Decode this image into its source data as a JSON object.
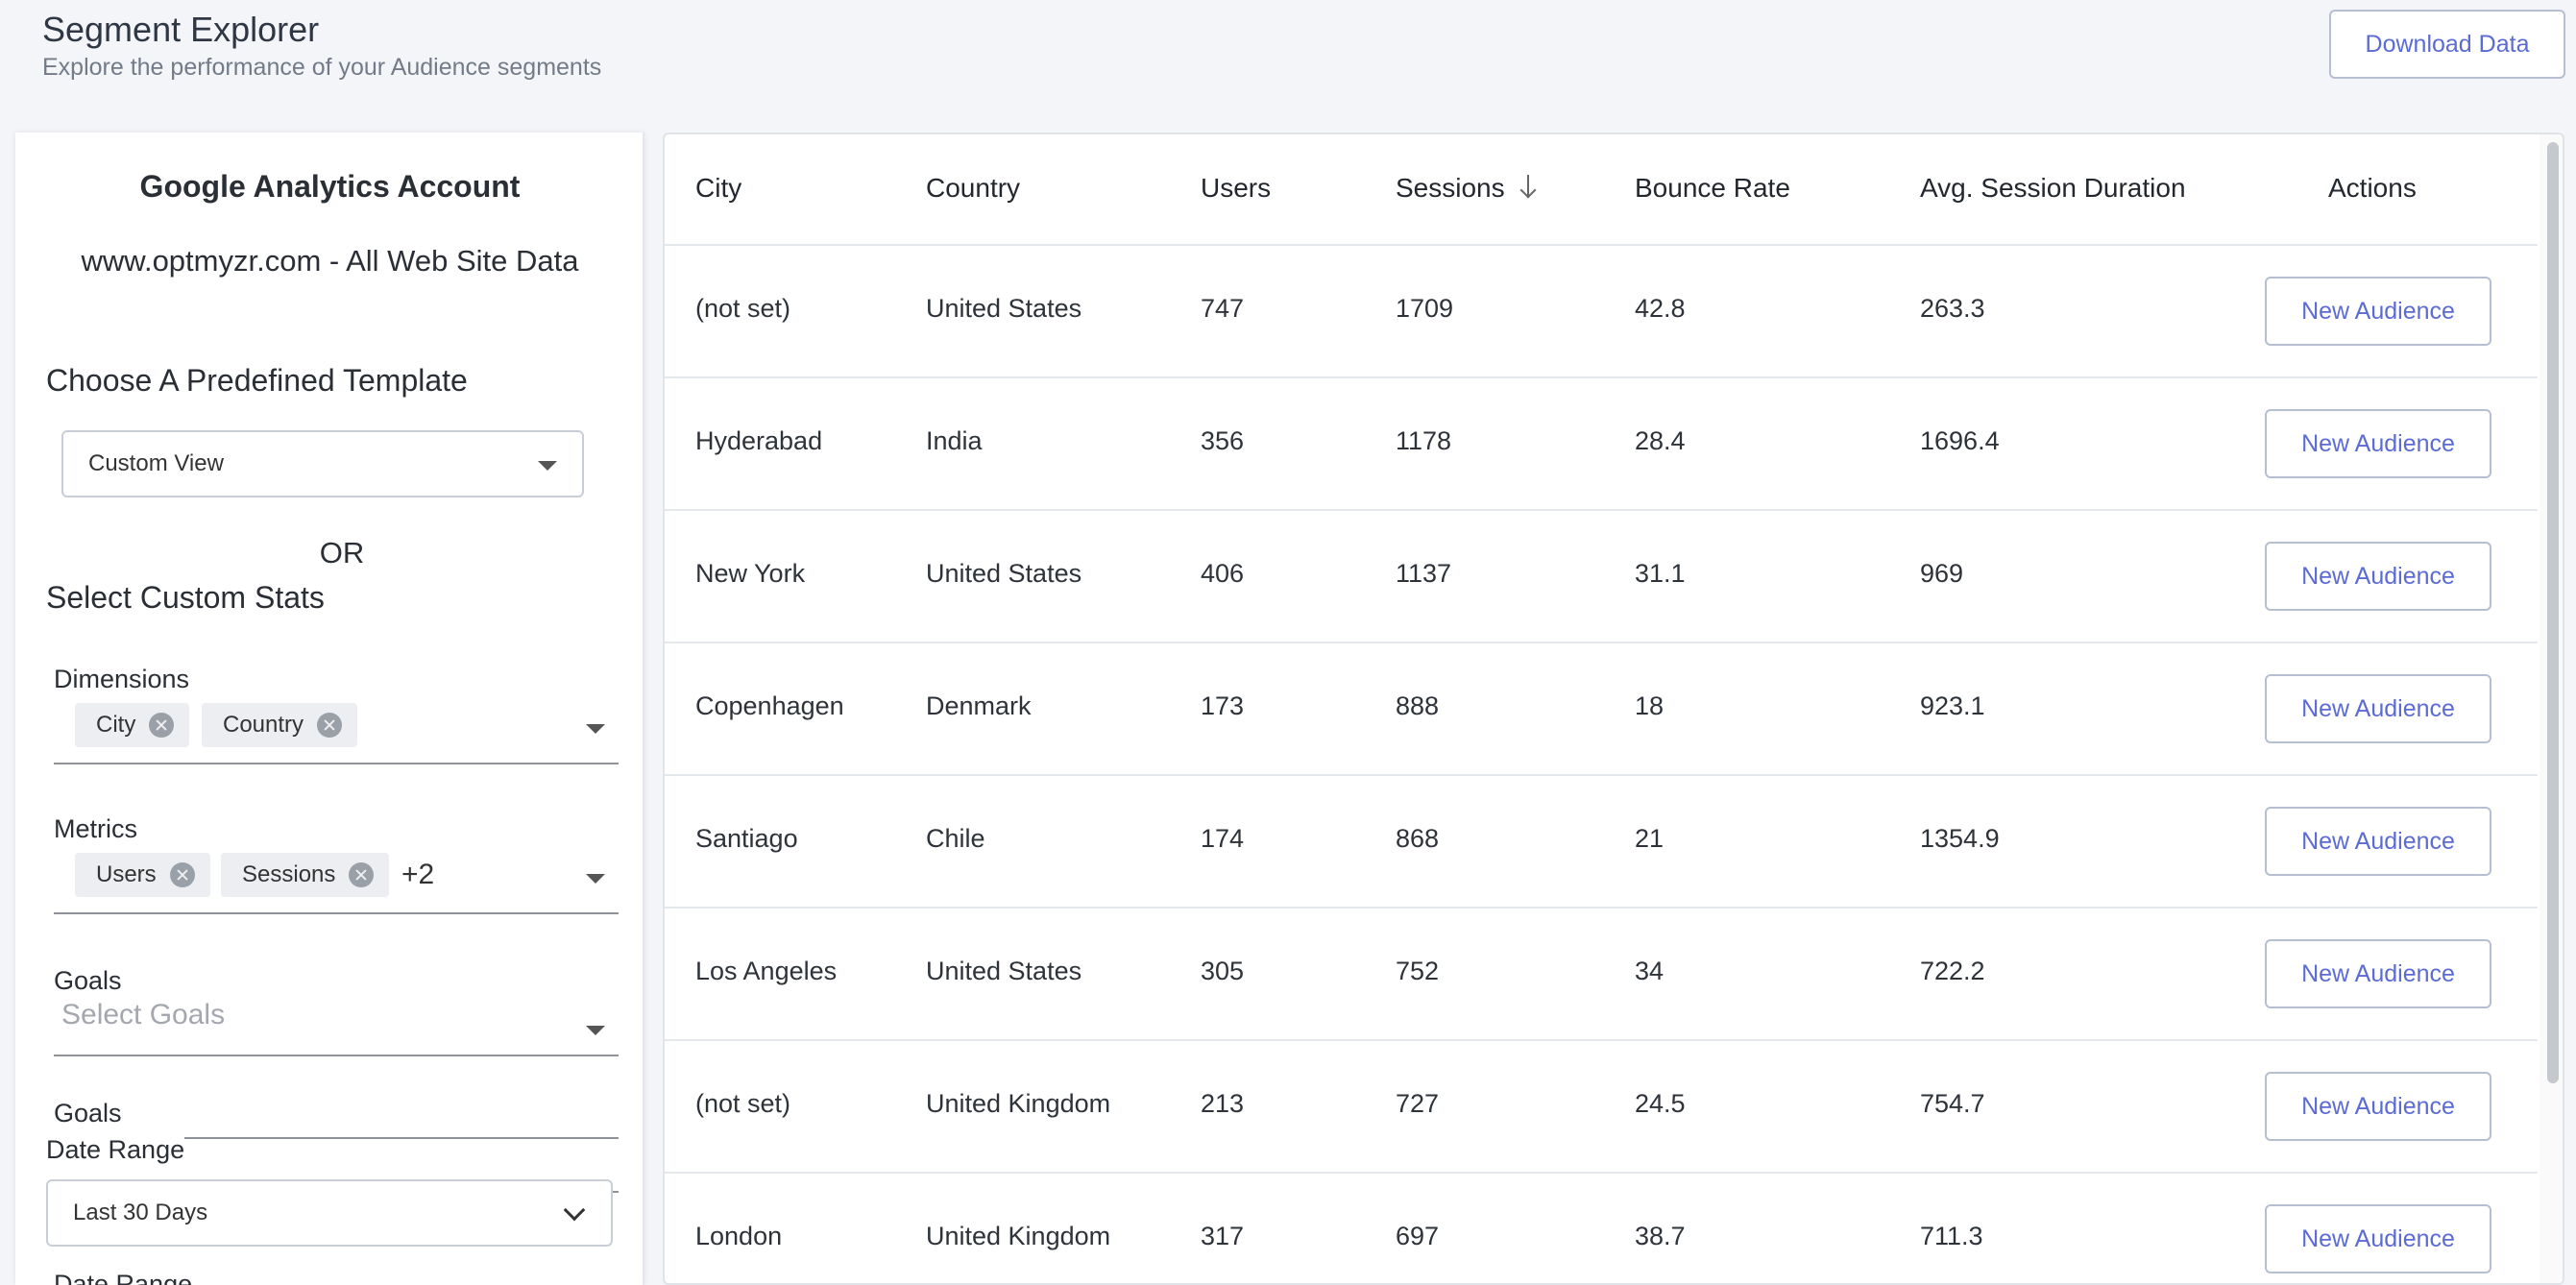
{
  "header": {
    "title": "Segment Explorer",
    "subtitle": "Explore the performance of your Audience segments",
    "download_label": "Download Data"
  },
  "sidebar": {
    "account_title": "Google Analytics Account",
    "account_name": "www.optmyzr.com - All Web Site Data",
    "template_label": "Choose A Predefined Template",
    "template_value": "Custom View",
    "or_label": "OR",
    "custom_label": "Select Custom Stats",
    "dimensions": {
      "label": "Dimensions",
      "chips": [
        "City",
        "Country"
      ]
    },
    "metrics": {
      "label": "Metrics",
      "chips": [
        "Users",
        "Sessions"
      ],
      "more": "+2"
    },
    "goals": {
      "label": "Goals",
      "placeholder": "Select Goals"
    },
    "date_range": {
      "label": "Date Range",
      "value": "Last 30 Days"
    }
  },
  "table": {
    "columns": [
      "City",
      "Country",
      "Users",
      "Sessions",
      "Bounce Rate",
      "Avg. Session Duration",
      "Actions"
    ],
    "sorted_column": "Sessions",
    "action_label": "New Audience",
    "rows": [
      [
        "(not set)",
        "United States",
        "747",
        "1709",
        "42.8",
        "263.3"
      ],
      [
        "Hyderabad",
        "India",
        "356",
        "1178",
        "28.4",
        "1696.4"
      ],
      [
        "New York",
        "United States",
        "406",
        "1137",
        "31.1",
        "969"
      ],
      [
        "Copenhagen",
        "Denmark",
        "173",
        "888",
        "18",
        "923.1"
      ],
      [
        "Santiago",
        "Chile",
        "174",
        "868",
        "21",
        "1354.9"
      ],
      [
        "Los Angeles",
        "United States",
        "305",
        "752",
        "34",
        "722.2"
      ],
      [
        "(not set)",
        "United Kingdom",
        "213",
        "727",
        "24.5",
        "754.7"
      ],
      [
        "London",
        "United Kingdom",
        "317",
        "697",
        "38.7",
        "711.3"
      ]
    ]
  }
}
